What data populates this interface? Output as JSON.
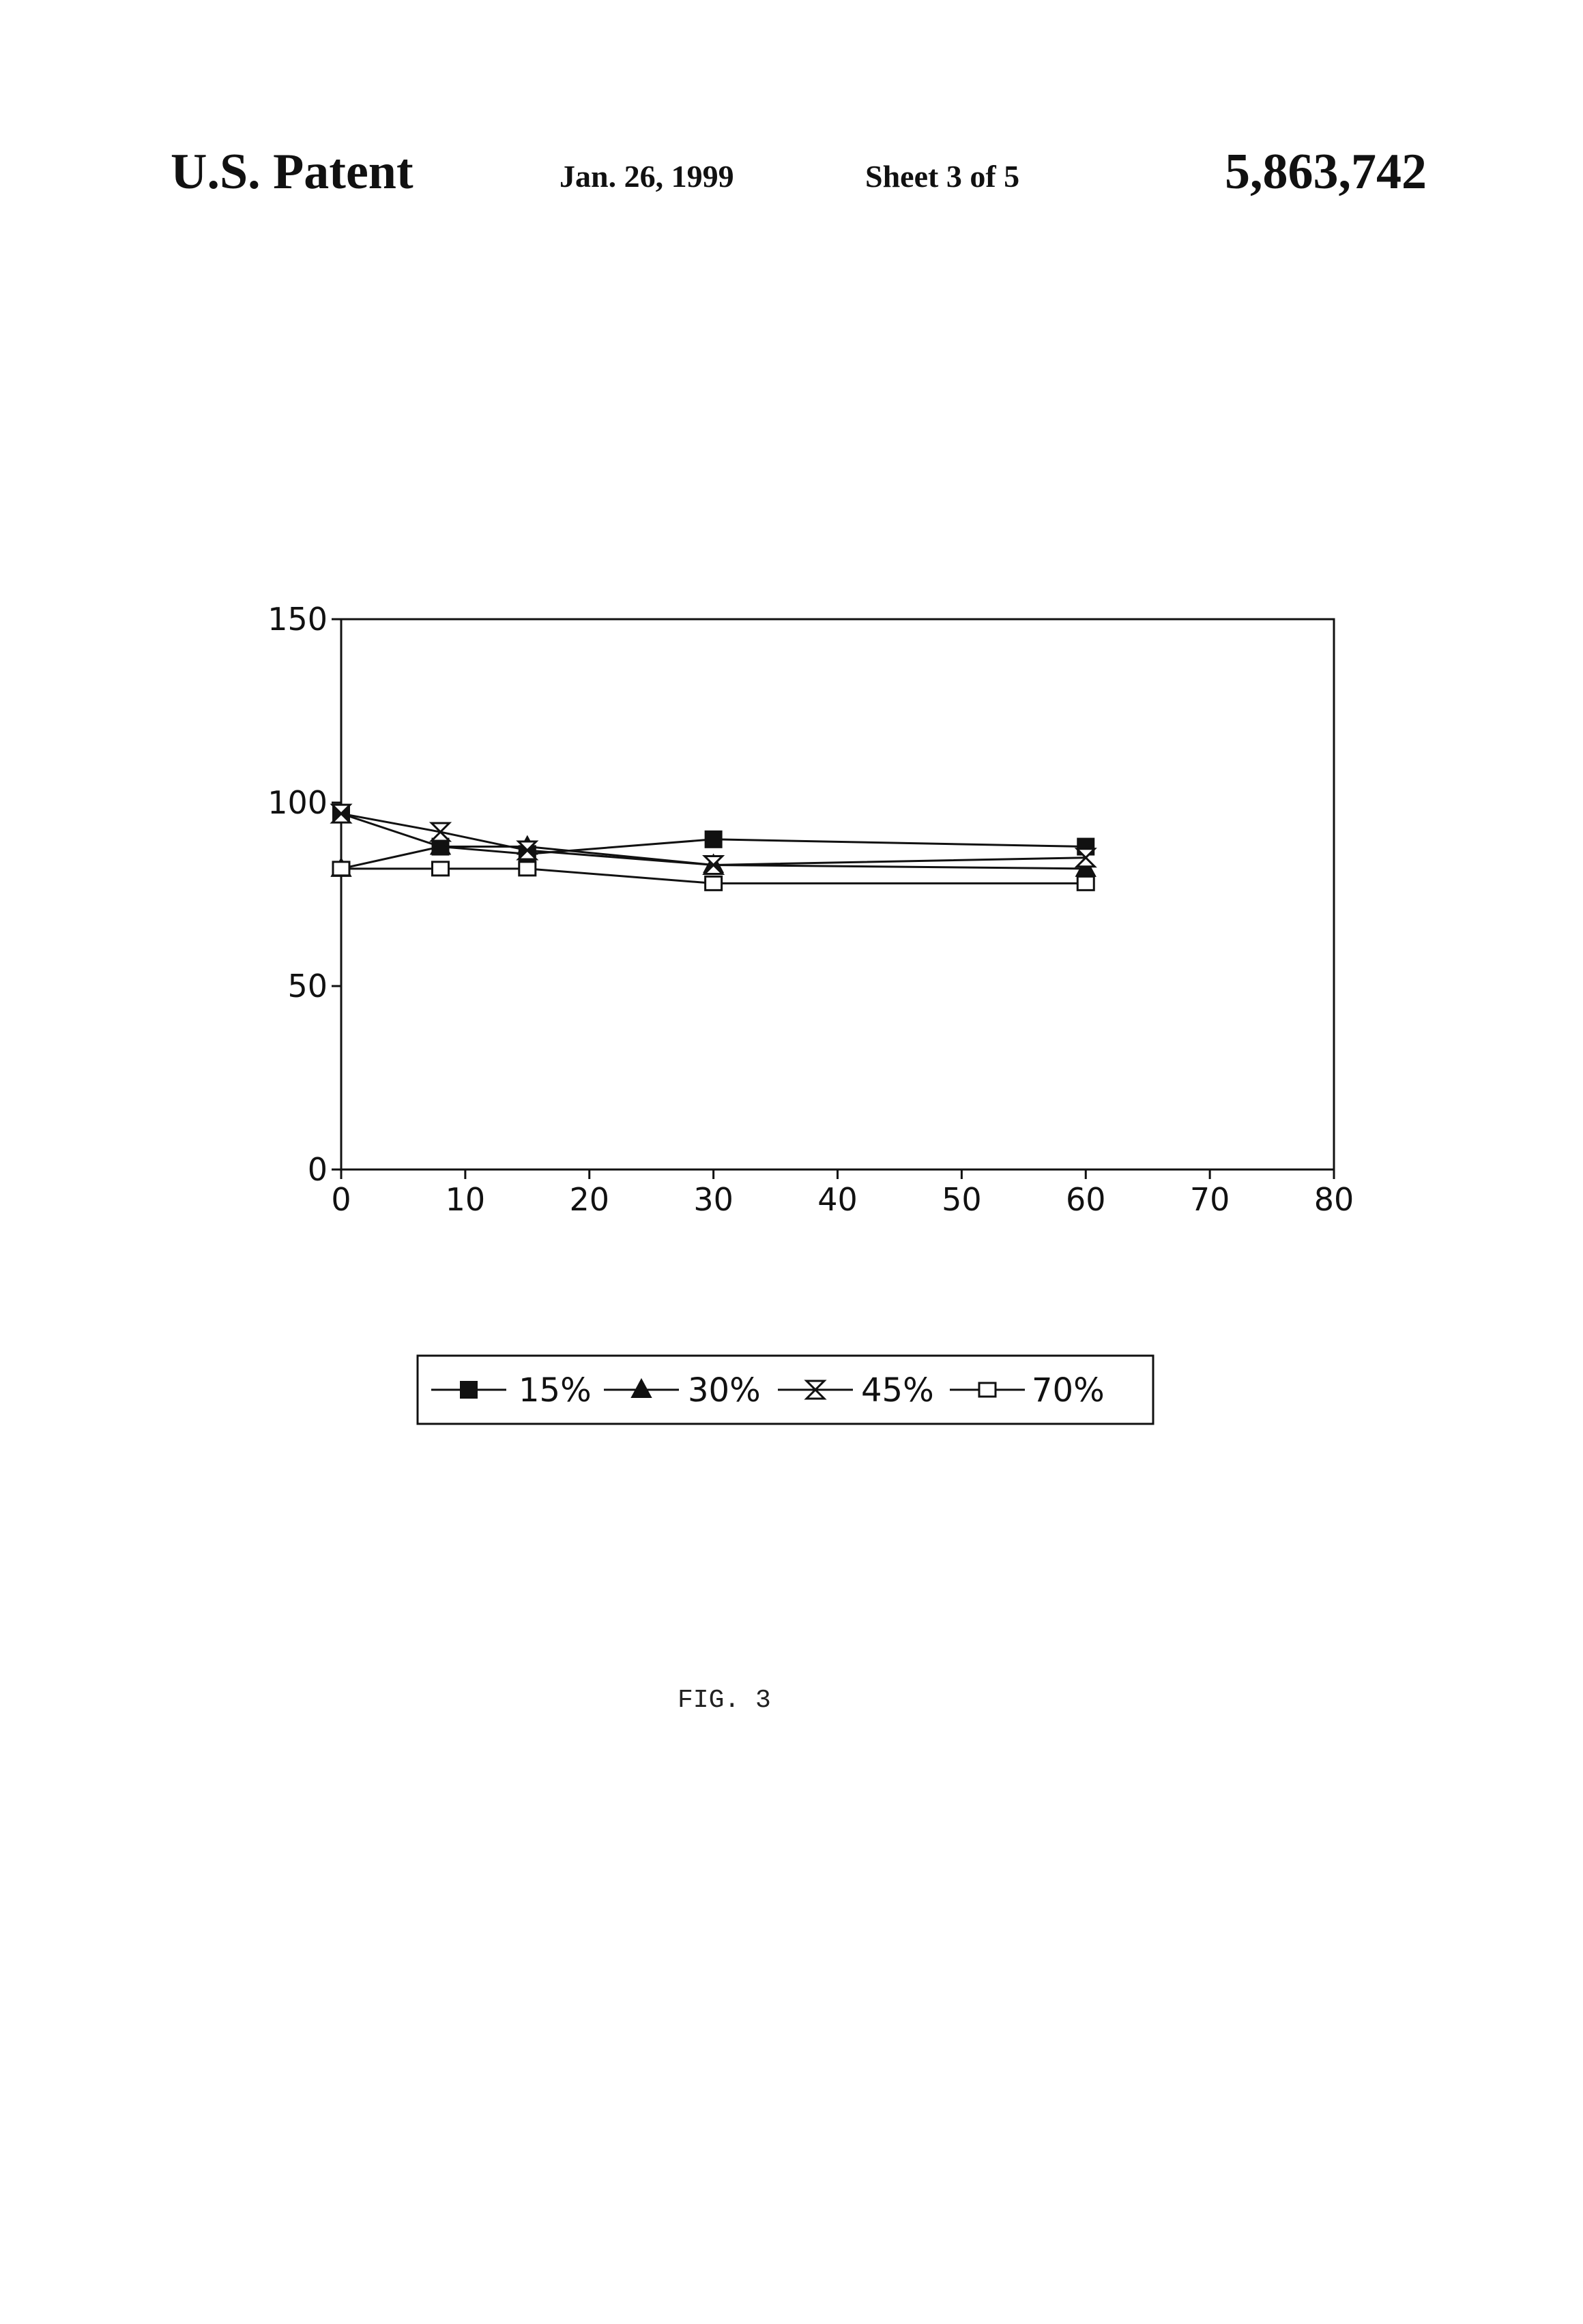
{
  "header": {
    "left": "U.S. Patent",
    "date": "Jan. 26, 1999",
    "sheet": "Sheet 3 of 5",
    "number": "5,863,742"
  },
  "figure_label": "FIG. 3",
  "chart_data": {
    "type": "line",
    "title": "",
    "xlabel": "",
    "ylabel": "",
    "xlim": [
      0,
      80
    ],
    "ylim": [
      0,
      150
    ],
    "x_ticks": [
      0,
      10,
      20,
      30,
      40,
      50,
      60,
      70,
      80
    ],
    "y_ticks": [
      0,
      50,
      100,
      150
    ],
    "grid": false,
    "legend_position": "below",
    "series": [
      {
        "name": "15%",
        "marker": "filled-square",
        "x": [
          0,
          8,
          15,
          30,
          60
        ],
        "y": [
          97,
          88,
          86,
          90,
          88
        ]
      },
      {
        "name": "30%",
        "marker": "filled-triangle",
        "x": [
          0,
          8,
          15,
          30,
          60
        ],
        "y": [
          82,
          88,
          88,
          83,
          82
        ]
      },
      {
        "name": "45%",
        "marker": "hourglass",
        "x": [
          0,
          8,
          15,
          30,
          60
        ],
        "y": [
          97,
          92,
          87,
          83,
          85
        ]
      },
      {
        "name": "70%",
        "marker": "open-square",
        "x": [
          0,
          8,
          15,
          30,
          60
        ],
        "y": [
          82,
          82,
          82,
          78,
          78
        ]
      }
    ]
  }
}
